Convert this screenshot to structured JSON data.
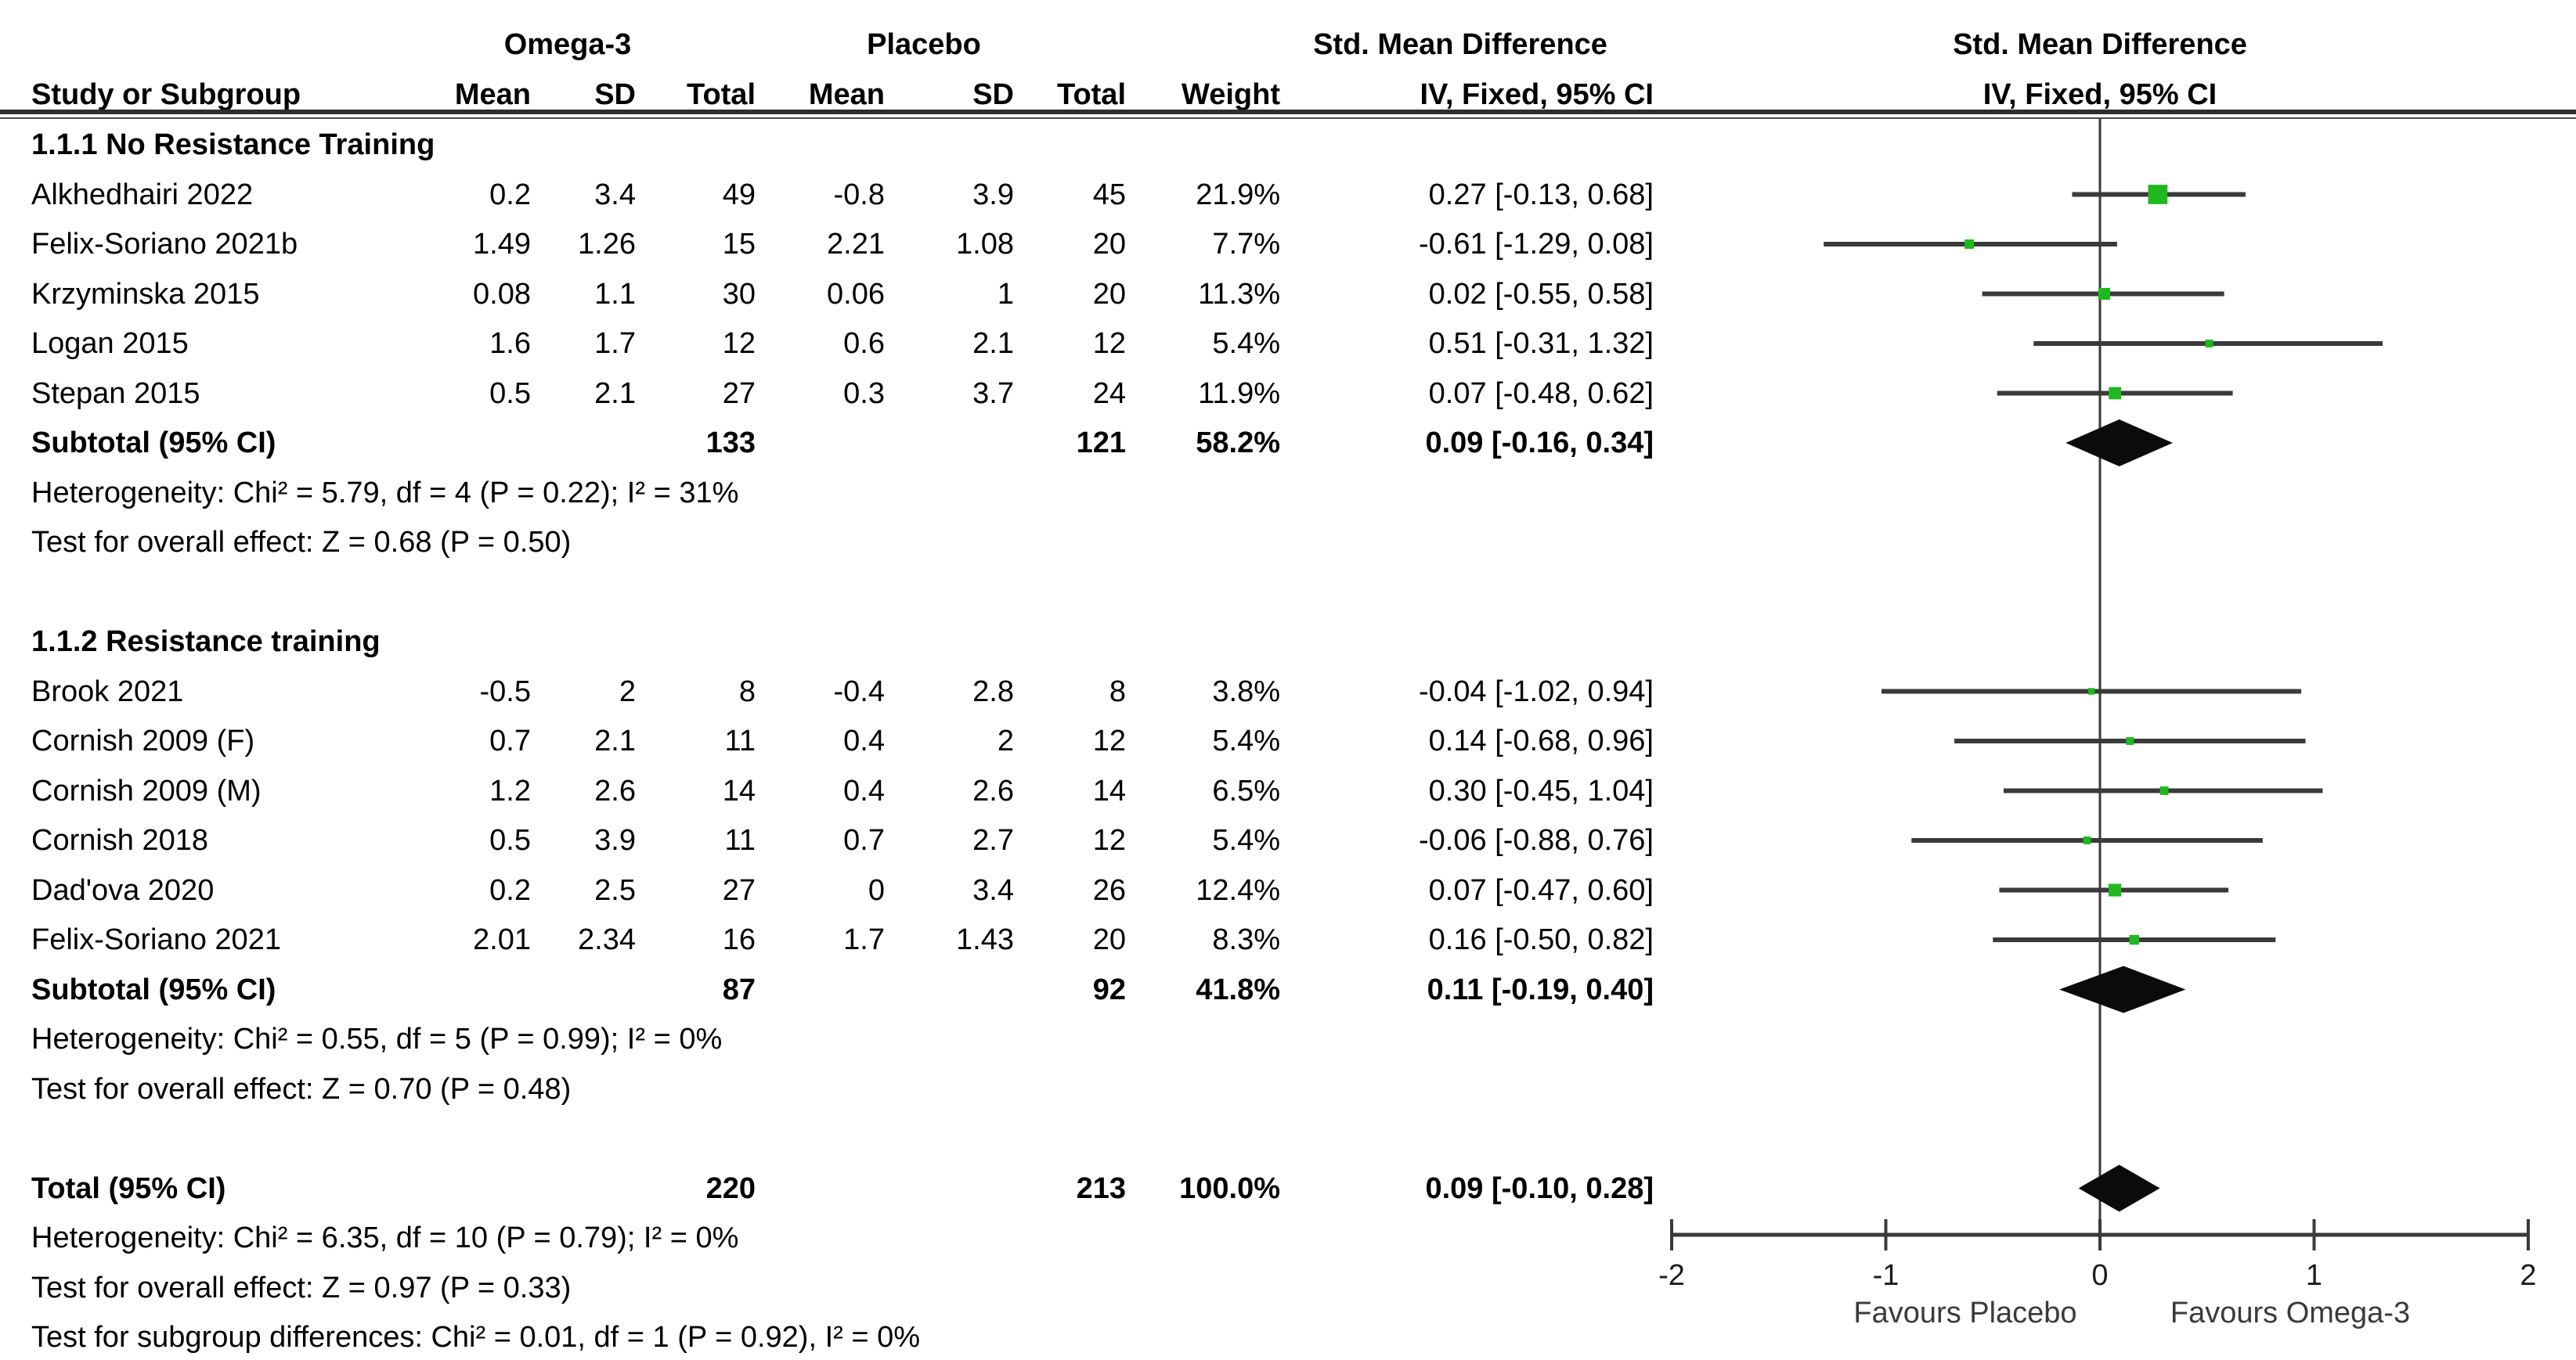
{
  "headers": {
    "treatment": "Omega-3",
    "control": "Placebo",
    "effect": "Std. Mean Difference",
    "method": "IV, Fixed, 95% CI"
  },
  "columns": {
    "study": "Study or Subgroup",
    "mean": "Mean",
    "sd": "SD",
    "total": "Total",
    "weight": "Weight"
  },
  "colors": {
    "marker_green": "#1fb81f",
    "ci_line": "#3a3a3a",
    "diamond": "#0b0b0b",
    "axis": "#3a3a3a"
  },
  "chart_data": {
    "type": "forest",
    "effect_measure": "Std. Mean Difference",
    "method": "IV, Fixed, 95% CI",
    "axis": {
      "min": -2,
      "max": 2,
      "ticks": [
        {
          "v": -2,
          "label": "-2"
        },
        {
          "v": -1,
          "label": "-1"
        },
        {
          "v": 0,
          "label": "0"
        },
        {
          "v": 1,
          "label": "1"
        },
        {
          "v": 2,
          "label": "2"
        }
      ],
      "favours_left": "Favours Placebo",
      "favours_right": "Favours Omega-3"
    },
    "groups": [
      {
        "name": "1.1.1 No Resistance Training",
        "studies": [
          {
            "study": "Alkhedhairi 2022",
            "mean1": "0.2",
            "sd1": "3.4",
            "total1": "49",
            "mean2": "-0.8",
            "sd2": "3.9",
            "total2": "45",
            "weight": "21.9%",
            "weight_value": 21.9,
            "ci_text": "0.27 [-0.13, 0.68]",
            "est": 0.27,
            "lo": -0.13,
            "hi": 0.68
          },
          {
            "study": "Felix-Soriano 2021b",
            "mean1": "1.49",
            "sd1": "1.26",
            "total1": "15",
            "mean2": "2.21",
            "sd2": "1.08",
            "total2": "20",
            "weight": "7.7%",
            "weight_value": 7.7,
            "ci_text": "-0.61 [-1.29, 0.08]",
            "est": -0.61,
            "lo": -1.29,
            "hi": 0.08
          },
          {
            "study": "Krzyminska 2015",
            "mean1": "0.08",
            "sd1": "1.1",
            "total1": "30",
            "mean2": "0.06",
            "sd2": "1",
            "total2": "20",
            "weight": "11.3%",
            "weight_value": 11.3,
            "ci_text": "0.02 [-0.55, 0.58]",
            "est": 0.02,
            "lo": -0.55,
            "hi": 0.58
          },
          {
            "study": "Logan 2015",
            "mean1": "1.6",
            "sd1": "1.7",
            "total1": "12",
            "mean2": "0.6",
            "sd2": "2.1",
            "total2": "12",
            "weight": "5.4%",
            "weight_value": 5.4,
            "ci_text": "0.51 [-0.31, 1.32]",
            "est": 0.51,
            "lo": -0.31,
            "hi": 1.32
          },
          {
            "study": "Stepan 2015",
            "mean1": "0.5",
            "sd1": "2.1",
            "total1": "27",
            "mean2": "0.3",
            "sd2": "3.7",
            "total2": "24",
            "weight": "11.9%",
            "weight_value": 11.9,
            "ci_text": "0.07 [-0.48, 0.62]",
            "est": 0.07,
            "lo": -0.48,
            "hi": 0.62
          }
        ],
        "subtotal": {
          "label": "Subtotal (95% CI)",
          "total1": "133",
          "total2": "121",
          "weight": "58.2%",
          "ci_text": "0.09 [-0.16, 0.34]",
          "est": 0.09,
          "lo": -0.16,
          "hi": 0.34
        },
        "heterogeneity": "Heterogeneity: Chi² = 5.79, df = 4 (P = 0.22); I² = 31%",
        "overall_effect": "Test for overall effect: Z = 0.68 (P = 0.50)"
      },
      {
        "name": "1.1.2 Resistance training",
        "studies": [
          {
            "study": "Brook 2021",
            "mean1": "-0.5",
            "sd1": "2",
            "total1": "8",
            "mean2": "-0.4",
            "sd2": "2.8",
            "total2": "8",
            "weight": "3.8%",
            "weight_value": 3.8,
            "ci_text": "-0.04 [-1.02, 0.94]",
            "est": -0.04,
            "lo": -1.02,
            "hi": 0.94
          },
          {
            "study": "Cornish 2009 (F)",
            "mean1": "0.7",
            "sd1": "2.1",
            "total1": "11",
            "mean2": "0.4",
            "sd2": "2",
            "total2": "12",
            "weight": "5.4%",
            "weight_value": 5.4,
            "ci_text": "0.14 [-0.68, 0.96]",
            "est": 0.14,
            "lo": -0.68,
            "hi": 0.96
          },
          {
            "study": "Cornish 2009 (M)",
            "mean1": "1.2",
            "sd1": "2.6",
            "total1": "14",
            "mean2": "0.4",
            "sd2": "2.6",
            "total2": "14",
            "weight": "6.5%",
            "weight_value": 6.5,
            "ci_text": "0.30 [-0.45, 1.04]",
            "est": 0.3,
            "lo": -0.45,
            "hi": 1.04
          },
          {
            "study": "Cornish 2018",
            "mean1": "0.5",
            "sd1": "3.9",
            "total1": "11",
            "mean2": "0.7",
            "sd2": "2.7",
            "total2": "12",
            "weight": "5.4%",
            "weight_value": 5.4,
            "ci_text": "-0.06 [-0.88, 0.76]",
            "est": -0.06,
            "lo": -0.88,
            "hi": 0.76
          },
          {
            "study": "Dad'ova 2020",
            "mean1": "0.2",
            "sd1": "2.5",
            "total1": "27",
            "mean2": "0",
            "sd2": "3.4",
            "total2": "26",
            "weight": "12.4%",
            "weight_value": 12.4,
            "ci_text": "0.07 [-0.47, 0.60]",
            "est": 0.07,
            "lo": -0.47,
            "hi": 0.6
          },
          {
            "study": "Felix-Soriano 2021",
            "mean1": "2.01",
            "sd1": "2.34",
            "total1": "16",
            "mean2": "1.7",
            "sd2": "1.43",
            "total2": "20",
            "weight": "8.3%",
            "weight_value": 8.3,
            "ci_text": "0.16 [-0.50, 0.82]",
            "est": 0.16,
            "lo": -0.5,
            "hi": 0.82
          }
        ],
        "subtotal": {
          "label": "Subtotal (95% CI)",
          "total1": "87",
          "total2": "92",
          "weight": "41.8%",
          "ci_text": "0.11 [-0.19, 0.40]",
          "est": 0.11,
          "lo": -0.19,
          "hi": 0.4
        },
        "heterogeneity": "Heterogeneity: Chi² = 0.55, df = 5 (P = 0.99); I² = 0%",
        "overall_effect": "Test for overall effect: Z = 0.70 (P = 0.48)"
      }
    ],
    "total": {
      "label": "Total (95% CI)",
      "total1": "220",
      "total2": "213",
      "weight": "100.0%",
      "ci_text": "0.09 [-0.10, 0.28]",
      "est": 0.09,
      "lo": -0.1,
      "hi": 0.28
    },
    "total_heterogeneity": "Heterogeneity: Chi² = 6.35, df = 10 (P = 0.79); I² = 0%",
    "total_overall_effect": "Test for overall effect: Z = 0.97 (P = 0.33)",
    "subgroup_differences": "Test for subgroup differences: Chi² = 0.01, df = 1 (P = 0.92), I² = 0%"
  }
}
